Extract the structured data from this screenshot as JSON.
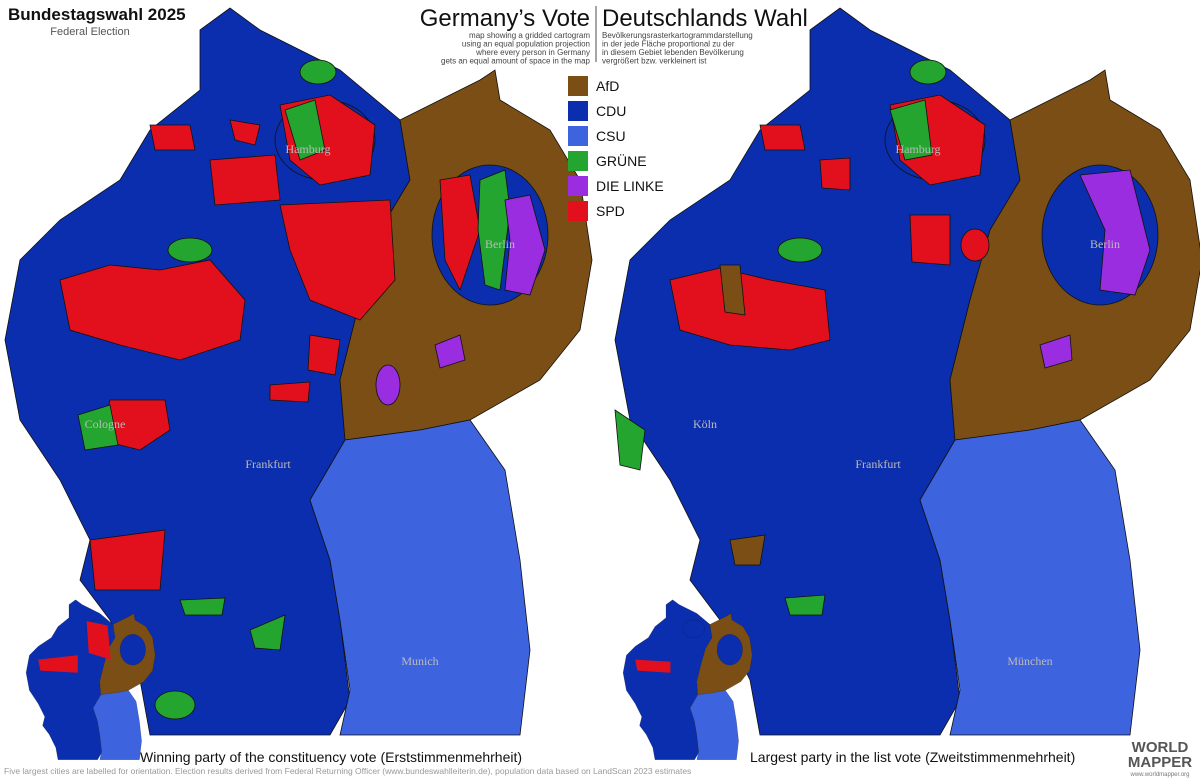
{
  "header": {
    "title": "Bundestagswahl 2025",
    "subtitle": "Federal Election",
    "title_en": "Germany’s Vote",
    "title_de": "Deutschlands Wahl",
    "description_en": [
      "map showing a gridded cartogram",
      "using an equal population projection",
      "where every person in Germany",
      "gets an equal amount of space in the map"
    ],
    "description_de": [
      "Bevölkerungsrasterkartogrammdarstellung",
      "in der jede Fläche proportional zu der",
      "in diesem Gebiet lebenden Bevölkerung",
      "vergrößert bzw. verkleinert ist"
    ]
  },
  "legend": [
    {
      "label": "AfD",
      "color": "#7a4e14"
    },
    {
      "label": "CDU",
      "color": "#0b2eae"
    },
    {
      "label": "CSU",
      "color": "#3d63de"
    },
    {
      "label": "GRÜNE",
      "color": "#23a52f"
    },
    {
      "label": "DIE LINKE",
      "color": "#9a2de0"
    },
    {
      "label": "SPD",
      "color": "#e2101d"
    }
  ],
  "maps": [
    {
      "caption": "Winning party of the constituency vote (Erststimmenmehrheit)",
      "cities": [
        "Hamburg",
        "Berlin",
        "Cologne",
        "Frankfurt",
        "Munich"
      ]
    },
    {
      "caption": "Largest party in the list vote (Zweitstimmenmehrheit)",
      "cities": [
        "Hamburg",
        "Berlin",
        "Köln",
        "Frankfurt",
        "München"
      ]
    }
  ],
  "footer": "Five largest cities are labelled for orientation. Election results derived from Federal Returning Officer (www.bundeswahlleiterin.de), population data based on LandScan 2023 estimates",
  "logo": {
    "line1": "WORLD",
    "line2": "MAPPER",
    "url": "www.worldmapper.org"
  }
}
